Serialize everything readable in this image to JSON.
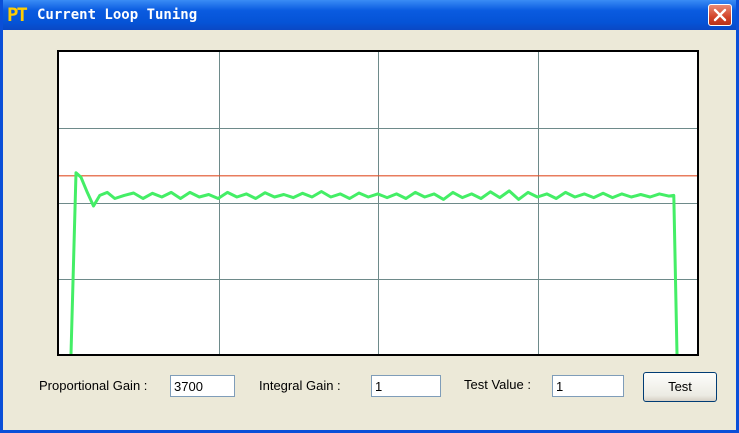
{
  "window": {
    "icon_text": "PT",
    "title": "Current Loop Tuning"
  },
  "chart_data": {
    "type": "line",
    "grid": true,
    "grid_divisions": {
      "x": 4,
      "y": 4
    },
    "ylim": [
      0,
      1
    ],
    "xlim": [
      0,
      1
    ],
    "setpoint": 0.59,
    "colors": {
      "background": "#ffffff",
      "grid": "#6e8a8a",
      "setpoint": "#e05028",
      "response": "#44ee66"
    },
    "series": [
      {
        "color": "#44ee66",
        "points": [
          [
            0.0,
            0.0
          ],
          [
            0.008,
            0.6
          ],
          [
            0.016,
            0.585
          ],
          [
            0.026,
            0.535
          ],
          [
            0.036,
            0.49
          ],
          [
            0.046,
            0.525
          ],
          [
            0.058,
            0.535
          ],
          [
            0.07,
            0.515
          ],
          [
            0.085,
            0.525
          ],
          [
            0.1,
            0.533
          ],
          [
            0.115,
            0.515
          ],
          [
            0.13,
            0.532
          ],
          [
            0.145,
            0.52
          ],
          [
            0.16,
            0.535
          ],
          [
            0.175,
            0.515
          ],
          [
            0.19,
            0.535
          ],
          [
            0.205,
            0.52
          ],
          [
            0.22,
            0.528
          ],
          [
            0.235,
            0.515
          ],
          [
            0.25,
            0.535
          ],
          [
            0.265,
            0.52
          ],
          [
            0.28,
            0.53
          ],
          [
            0.295,
            0.515
          ],
          [
            0.31,
            0.534
          ],
          [
            0.325,
            0.52
          ],
          [
            0.34,
            0.528
          ],
          [
            0.355,
            0.518
          ],
          [
            0.37,
            0.532
          ],
          [
            0.385,
            0.52
          ],
          [
            0.4,
            0.538
          ],
          [
            0.415,
            0.52
          ],
          [
            0.43,
            0.53
          ],
          [
            0.445,
            0.515
          ],
          [
            0.46,
            0.533
          ],
          [
            0.475,
            0.52
          ],
          [
            0.49,
            0.53
          ],
          [
            0.505,
            0.518
          ],
          [
            0.52,
            0.53
          ],
          [
            0.535,
            0.515
          ],
          [
            0.55,
            0.535
          ],
          [
            0.565,
            0.52
          ],
          [
            0.58,
            0.53
          ],
          [
            0.595,
            0.512
          ],
          [
            0.61,
            0.535
          ],
          [
            0.625,
            0.518
          ],
          [
            0.64,
            0.53
          ],
          [
            0.655,
            0.515
          ],
          [
            0.67,
            0.537
          ],
          [
            0.685,
            0.518
          ],
          [
            0.7,
            0.54
          ],
          [
            0.715,
            0.512
          ],
          [
            0.73,
            0.535
          ],
          [
            0.745,
            0.52
          ],
          [
            0.76,
            0.53
          ],
          [
            0.775,
            0.515
          ],
          [
            0.79,
            0.535
          ],
          [
            0.805,
            0.52
          ],
          [
            0.82,
            0.53
          ],
          [
            0.835,
            0.518
          ],
          [
            0.85,
            0.532
          ],
          [
            0.865,
            0.518
          ],
          [
            0.88,
            0.53
          ],
          [
            0.895,
            0.52
          ],
          [
            0.91,
            0.528
          ],
          [
            0.925,
            0.52
          ],
          [
            0.94,
            0.53
          ],
          [
            0.955,
            0.523
          ],
          [
            0.963,
            0.525
          ],
          [
            0.968,
            0.0
          ]
        ]
      }
    ]
  },
  "controls": {
    "proportional_gain_label": "Proportional Gain :",
    "proportional_gain_value": "3700",
    "integral_gain_label": "Integral Gain :",
    "integral_gain_value": "1",
    "test_value_label": "Test Value :",
    "test_value_value": "1",
    "test_button_label": "Test"
  }
}
